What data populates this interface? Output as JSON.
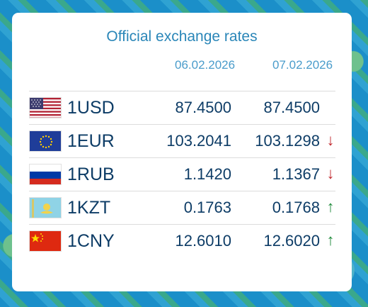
{
  "widget": {
    "title": "Official exchange rates",
    "date_1": "06.02.2026",
    "date_2": "07.02.2026"
  },
  "colors": {
    "title": "#2a86b8",
    "text": "#0d3c66",
    "down": "#c0272d",
    "up": "#1f8a3a"
  },
  "rates": [
    {
      "code": "1USD",
      "flag": "us-flag-icon",
      "rate_1": "87.4500",
      "rate_2": "87.4500",
      "trend": "",
      "trend_dir": "none"
    },
    {
      "code": "1EUR",
      "flag": "eu-flag-icon",
      "rate_1": "103.2041",
      "rate_2": "103.1298",
      "trend": "↓",
      "trend_dir": "down"
    },
    {
      "code": "1RUB",
      "flag": "ru-flag-icon",
      "rate_1": "1.1420",
      "rate_2": "1.1367",
      "trend": "↓",
      "trend_dir": "down"
    },
    {
      "code": "1KZT",
      "flag": "kz-flag-icon",
      "rate_1": "0.1763",
      "rate_2": "0.1768",
      "trend": "↑",
      "trend_dir": "up"
    },
    {
      "code": "1CNY",
      "flag": "cn-flag-icon",
      "rate_1": "12.6010",
      "rate_2": "12.6020",
      "trend": "↑",
      "trend_dir": "up"
    }
  ]
}
